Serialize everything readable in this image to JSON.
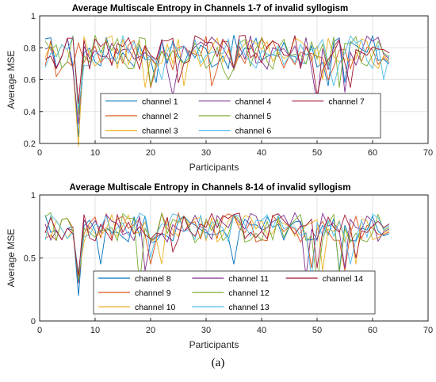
{
  "caption": "(a)",
  "chart_data": [
    {
      "type": "line",
      "title": "Average Multiscale Entropy in Channels 1-7 of invalid  syllogism",
      "xlabel": "Participants",
      "ylabel": "Average MSE",
      "xlim": [
        0,
        70
      ],
      "ylim": [
        0.2,
        1.0
      ],
      "xticks": [
        0,
        10,
        20,
        30,
        40,
        50,
        60,
        70
      ],
      "yticks": [
        0.2,
        0.4,
        0.6,
        0.8,
        1.0
      ],
      "ytick_labels": [
        "0.2",
        "0.4",
        "0.6",
        "0.8",
        "1"
      ],
      "grid": true,
      "legend_position": "lower-center",
      "legend_rows": 3,
      "x": [
        1,
        63
      ],
      "series": [
        {
          "name": "channel 1",
          "color": "#0072BD",
          "dips": [
            [
              7,
              0.24
            ],
            [
              21,
              0.58
            ],
            [
              52,
              0.56
            ],
            [
              55,
              0.58
            ]
          ]
        },
        {
          "name": "channel 2",
          "color": "#D95319",
          "dips": [
            [
              3,
              0.62
            ],
            [
              20,
              0.55
            ],
            [
              31,
              0.56
            ],
            [
              52,
              0.6
            ]
          ]
        },
        {
          "name": "channel 3",
          "color": "#EDB120",
          "dips": [
            [
              7,
              0.18
            ],
            [
              19,
              0.55
            ],
            [
              26,
              0.56
            ],
            [
              51,
              0.6
            ]
          ]
        },
        {
          "name": "channel 4",
          "color": "#7E2F8E",
          "dips": [
            [
              7,
              0.32
            ],
            [
              24,
              0.5
            ],
            [
              50,
              0.45
            ],
            [
              55,
              0.52
            ]
          ]
        },
        {
          "name": "channel 5",
          "color": "#77AC30",
          "dips": [
            [
              7,
              0.38
            ],
            [
              20,
              0.56
            ],
            [
              34,
              0.6
            ],
            [
              54,
              0.55
            ]
          ]
        },
        {
          "name": "channel 6",
          "color": "#4DBEEE",
          "dips": [
            [
              7,
              0.42
            ],
            [
              22,
              0.6
            ],
            [
              53,
              0.56
            ],
            [
              62,
              0.6
            ]
          ]
        },
        {
          "name": "channel 7",
          "color": "#A2142F",
          "dips": [
            [
              7,
              0.45
            ],
            [
              25,
              0.58
            ],
            [
              50,
              0.5
            ],
            [
              56,
              0.55
            ]
          ]
        }
      ]
    },
    {
      "type": "line",
      "title": "Average Multiscale Entropy in Channels 8-14 of invalid  syllogism",
      "xlabel": "Participants",
      "ylabel": "Average MSE",
      "xlim": [
        0,
        70
      ],
      "ylim": [
        0,
        1.0
      ],
      "xticks": [
        0,
        10,
        20,
        30,
        40,
        50,
        60,
        70
      ],
      "yticks": [
        0,
        0.5,
        1.0
      ],
      "ytick_labels": [
        "0",
        "0.5",
        "1"
      ],
      "grid": true,
      "legend_position": "lower-center",
      "legend_rows": 3,
      "x": [
        1,
        63
      ],
      "series": [
        {
          "name": "channel 8",
          "color": "#0072BD",
          "dips": [
            [
              7,
              0.2
            ],
            [
              11,
              0.45
            ],
            [
              35,
              0.45
            ],
            [
              54,
              0.4
            ]
          ]
        },
        {
          "name": "channel 9",
          "color": "#D95319",
          "dips": [
            [
              7,
              0.3
            ],
            [
              20,
              0.45
            ],
            [
              49,
              0.42
            ],
            [
              55,
              0.4
            ]
          ]
        },
        {
          "name": "channel 10",
          "color": "#EDB120",
          "dips": [
            [
              7,
              0.35
            ],
            [
              22,
              0.45
            ],
            [
              51,
              0.4
            ],
            [
              57,
              0.45
            ]
          ]
        },
        {
          "name": "channel 11",
          "color": "#7E2F8E",
          "dips": [
            [
              7,
              0.3
            ],
            [
              19,
              0.4
            ],
            [
              48,
              0.35
            ],
            [
              55,
              0.42
            ]
          ]
        },
        {
          "name": "channel 12",
          "color": "#77AC30",
          "dips": [
            [
              7,
              0.32
            ],
            [
              18,
              0.28
            ],
            [
              50,
              0.3
            ],
            [
              54,
              0.38
            ]
          ]
        },
        {
          "name": "channel 13",
          "color": "#4DBEEE",
          "dips": [
            [
              7,
              0.38
            ],
            [
              20,
              0.5
            ],
            [
              49,
              0.34
            ],
            [
              56,
              0.45
            ]
          ]
        },
        {
          "name": "channel 14",
          "color": "#A2142F",
          "dips": [
            [
              7,
              0.36
            ],
            [
              24,
              0.55
            ],
            [
              50,
              0.42
            ],
            [
              57,
              0.5
            ]
          ]
        }
      ]
    }
  ]
}
